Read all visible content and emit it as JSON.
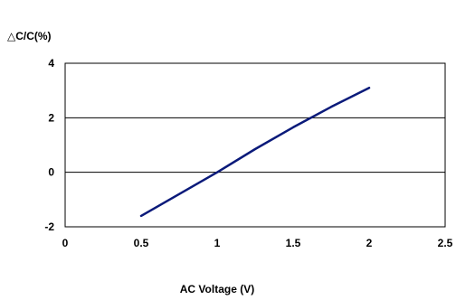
{
  "chart_data": {
    "type": "line",
    "ylabel": "△C/C(%)",
    "xlabel": "AC Voltage (V)",
    "xlim": [
      0,
      2.5
    ],
    "ylim": [
      -2,
      4
    ],
    "xticks": [
      "0",
      "0.5",
      "1",
      "1.5",
      "2",
      "2.5"
    ],
    "yticks": [
      "4",
      "2",
      "0",
      "-2"
    ],
    "xtick_values": [
      0,
      0.5,
      1,
      1.5,
      2,
      2.5
    ],
    "ytick_values": [
      4,
      2,
      0,
      -2
    ],
    "grid": "horizontal",
    "series": [
      {
        "color": "#0a1a7a",
        "x": [
          0.5,
          0.75,
          1.0,
          1.25,
          1.5,
          1.75,
          2.0
        ],
        "y": [
          -1.6,
          -0.8,
          0.0,
          0.85,
          1.65,
          2.4,
          3.1
        ]
      }
    ]
  }
}
